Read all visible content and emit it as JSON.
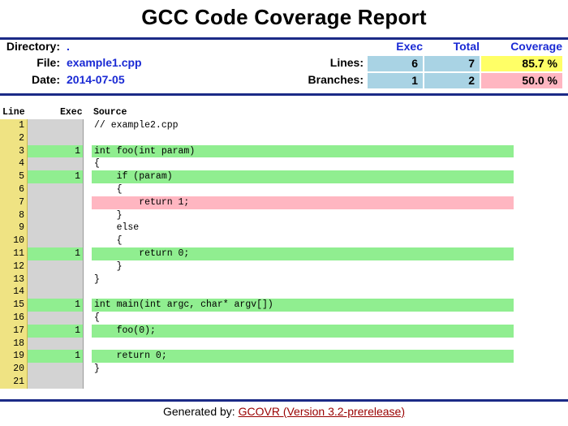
{
  "title": "GCC Code Coverage Report",
  "summary": {
    "directory_label": "Directory:",
    "directory_value": ".",
    "file_label": "File:",
    "file_value": "example1.cpp",
    "date_label": "Date:",
    "date_value": "2014-07-05",
    "col_exec": "Exec",
    "col_total": "Total",
    "col_coverage": "Coverage",
    "lines_label": "Lines:",
    "lines_exec": "6",
    "lines_total": "7",
    "lines_coverage": "85.7 %",
    "branches_label": "Branches:",
    "branches_exec": "1",
    "branches_total": "2",
    "branches_coverage": "50.0 %",
    "colors": {
      "exec_total_bg": "#a9d3e4",
      "coverage_high": "#ffff66",
      "coverage_low": "#ffb6c1"
    }
  },
  "source": {
    "headers": {
      "line": "Line",
      "exec": "Exec",
      "source": "Source"
    },
    "colors": {
      "covered": "#90ee90",
      "uncovered": "#ffb6c1",
      "line_col": "#efe383",
      "exec_col": "#d3d3d3"
    },
    "rows": [
      {
        "line": "1",
        "exec": "",
        "status": "none",
        "code": "// example2.cpp"
      },
      {
        "line": "2",
        "exec": "",
        "status": "none",
        "code": ""
      },
      {
        "line": "3",
        "exec": "1",
        "status": "covered",
        "code": "int foo(int param)"
      },
      {
        "line": "4",
        "exec": "",
        "status": "none",
        "code": "{"
      },
      {
        "line": "5",
        "exec": "1",
        "status": "covered",
        "code": "    if (param)"
      },
      {
        "line": "6",
        "exec": "",
        "status": "none",
        "code": "    {"
      },
      {
        "line": "7",
        "exec": "",
        "status": "uncovered",
        "code": "        return 1;"
      },
      {
        "line": "8",
        "exec": "",
        "status": "none",
        "code": "    }"
      },
      {
        "line": "9",
        "exec": "",
        "status": "none",
        "code": "    else"
      },
      {
        "line": "10",
        "exec": "",
        "status": "none",
        "code": "    {"
      },
      {
        "line": "11",
        "exec": "1",
        "status": "covered",
        "code": "        return 0;"
      },
      {
        "line": "12",
        "exec": "",
        "status": "none",
        "code": "    }"
      },
      {
        "line": "13",
        "exec": "",
        "status": "none",
        "code": "}"
      },
      {
        "line": "14",
        "exec": "",
        "status": "none",
        "code": ""
      },
      {
        "line": "15",
        "exec": "1",
        "status": "covered",
        "code": "int main(int argc, char* argv[])"
      },
      {
        "line": "16",
        "exec": "",
        "status": "none",
        "code": "{"
      },
      {
        "line": "17",
        "exec": "1",
        "status": "covered",
        "code": "    foo(0);"
      },
      {
        "line": "18",
        "exec": "",
        "status": "none",
        "code": ""
      },
      {
        "line": "19",
        "exec": "1",
        "status": "covered",
        "code": "    return 0;"
      },
      {
        "line": "20",
        "exec": "",
        "status": "none",
        "code": "}"
      },
      {
        "line": "21",
        "exec": "",
        "status": "none",
        "code": ""
      }
    ]
  },
  "footer": {
    "prefix": "Generated by: ",
    "link_text": "GCOVR (Version 3.2-prerelease)"
  }
}
